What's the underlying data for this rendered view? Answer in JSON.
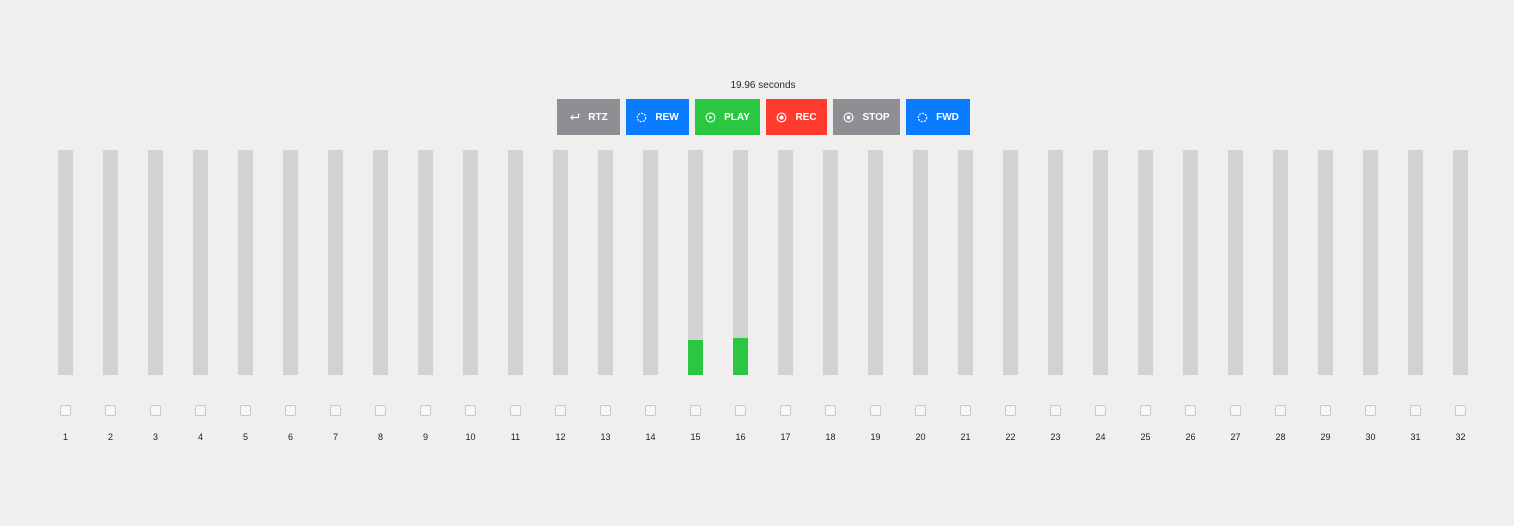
{
  "time_display": "19.96 seconds",
  "transport": [
    {
      "label": "RTZ",
      "icon": "return-arrow-icon",
      "color": "#8e8e93",
      "width": 63,
      "name": "rtz-button"
    },
    {
      "label": "REW",
      "icon": "spinner-icon",
      "color": "#0a7cff",
      "width": 63,
      "name": "rew-button"
    },
    {
      "label": "PLAY",
      "icon": "play-circle-icon",
      "color": "#29c840",
      "width": 65,
      "name": "play-button"
    },
    {
      "label": "REC",
      "icon": "record-circle-icon",
      "color": "#ff3b30",
      "width": 61,
      "name": "rec-button"
    },
    {
      "label": "STOP",
      "icon": "stop-circle-icon",
      "color": "#8e8e93",
      "width": 67,
      "name": "stop-button"
    },
    {
      "label": "FWD",
      "icon": "spinner-icon",
      "color": "#0a7cff",
      "width": 64,
      "name": "fwd-button"
    }
  ],
  "tracks": [
    {
      "number": "1",
      "level": 0
    },
    {
      "number": "2",
      "level": 0
    },
    {
      "number": "3",
      "level": 0
    },
    {
      "number": "4",
      "level": 0
    },
    {
      "number": "5",
      "level": 0
    },
    {
      "number": "6",
      "level": 0
    },
    {
      "number": "7",
      "level": 0
    },
    {
      "number": "8",
      "level": 0
    },
    {
      "number": "9",
      "level": 0
    },
    {
      "number": "10",
      "level": 0
    },
    {
      "number": "11",
      "level": 0
    },
    {
      "number": "12",
      "level": 0
    },
    {
      "number": "13",
      "level": 0
    },
    {
      "number": "14",
      "level": 0
    },
    {
      "number": "15",
      "level": 0.156
    },
    {
      "number": "16",
      "level": 0.164
    },
    {
      "number": "17",
      "level": 0
    },
    {
      "number": "18",
      "level": 0
    },
    {
      "number": "19",
      "level": 0
    },
    {
      "number": "20",
      "level": 0
    },
    {
      "number": "21",
      "level": 0
    },
    {
      "number": "22",
      "level": 0
    },
    {
      "number": "23",
      "level": 0
    },
    {
      "number": "24",
      "level": 0
    },
    {
      "number": "25",
      "level": 0
    },
    {
      "number": "26",
      "level": 0
    },
    {
      "number": "27",
      "level": 0
    },
    {
      "number": "28",
      "level": 0
    },
    {
      "number": "29",
      "level": 0
    },
    {
      "number": "30",
      "level": 0
    },
    {
      "number": "31",
      "level": 0
    },
    {
      "number": "32",
      "level": 0
    }
  ],
  "colors": {
    "meter_track": "#d3d1d1",
    "meter_fill": "#29c840"
  }
}
